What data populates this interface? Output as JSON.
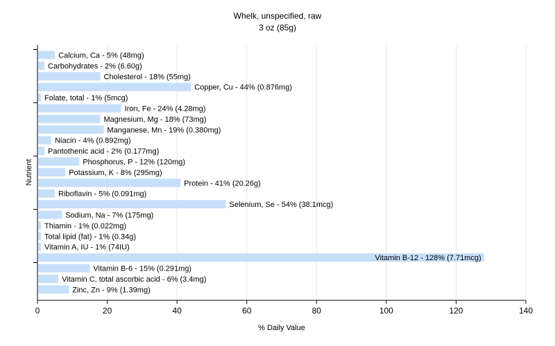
{
  "chart_data": {
    "type": "bar",
    "orientation": "horizontal",
    "title": "Whelk, unspecified, raw",
    "subtitle": "3 oz (85g)",
    "xlabel": "% Daily Value",
    "ylabel": "Nutrient",
    "xlim": [
      0,
      140
    ],
    "xticks": [
      "0",
      "20",
      "40",
      "60",
      "80",
      "100",
      "120",
      "140"
    ],
    "grid": true,
    "bar_color": "#c6dffa",
    "categories": [
      "Calcium, Ca",
      "Carbohydrates",
      "Cholesterol",
      "Copper, Cu",
      "Folate, total",
      "Iron, Fe",
      "Magnesium, Mg",
      "Manganese, Mn",
      "Niacin",
      "Pantothenic acid",
      "Phosphorus, P",
      "Potassium, K",
      "Protein",
      "Riboflavin",
      "Selenium, Se",
      "Sodium, Na",
      "Thiamin",
      "Total lipid (fat)",
      "Vitamin A, IU",
      "Vitamin B-12",
      "Vitamin B-6",
      "Vitamin C, total ascorbic acid",
      "Zinc, Zn"
    ],
    "values": [
      5,
      2,
      18,
      44,
      1,
      24,
      18,
      19,
      4,
      2,
      12,
      8,
      41,
      5,
      54,
      7,
      1,
      1,
      1,
      128,
      15,
      6,
      9
    ],
    "labels": [
      "Calcium, Ca - 5% (48mg)",
      "Carbohydrates - 2% (6.60g)",
      "Cholesterol - 18% (55mg)",
      "Copper, Cu - 44% (0.876mg)",
      "Folate, total - 1% (5mcg)",
      "Iron, Fe - 24% (4.28mg)",
      "Magnesium, Mg - 18% (73mg)",
      "Manganese, Mn - 19% (0.380mg)",
      "Niacin - 4% (0.892mg)",
      "Pantothenic acid - 2% (0.177mg)",
      "Phosphorus, P - 12% (120mg)",
      "Potassium, K - 8% (295mg)",
      "Protein - 41% (20.26g)",
      "Riboflavin - 5% (0.091mg)",
      "Selenium, Se - 54% (38.1mcg)",
      "Sodium, Na - 7% (175mg)",
      "Thiamin - 1% (0.022mg)",
      "Total lipid (fat) - 1% (0.34g)",
      "Vitamin A, IU - 1% (74IU)",
      "Vitamin B-12 - 128% (7.71mcg)",
      "Vitamin B-6 - 15% (0.291mg)",
      "Vitamin C, total ascorbic acid - 6% (3.4mg)",
      "Zinc, Zn - 9% (1.39mg)"
    ]
  }
}
